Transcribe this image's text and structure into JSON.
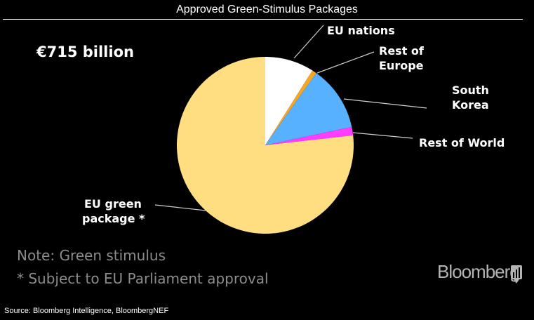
{
  "title": "Approved Green-Stimulus Packages",
  "total_label": "€715 billion",
  "notes": {
    "line1": "Note: Green stimulus",
    "line2": "* Subject to EU Parliament approval"
  },
  "source": "Source: Bloomberg Intelligence, BloombergNEF",
  "brand": "Bloomberg",
  "chart_data": {
    "type": "pie",
    "title": "Approved Green-Stimulus Packages",
    "unit": "€ billion",
    "total": 715,
    "start_angle_deg": 0,
    "direction": "clockwise",
    "slices": [
      {
        "label": [
          "EU nations"
        ],
        "value": 64,
        "color": "#ffffff"
      },
      {
        "label": [
          "Rest of",
          "Europe"
        ],
        "value": 6,
        "color": "#f5a623"
      },
      {
        "label": [
          "South",
          "Korea"
        ],
        "value": 85,
        "color": "#58b1ff"
      },
      {
        "label": [
          "Rest of World"
        ],
        "value": 11,
        "color": "#ff3cff"
      },
      {
        "label": [
          "EU green",
          "package *"
        ],
        "value": 549,
        "color": "#ffde82"
      }
    ]
  }
}
